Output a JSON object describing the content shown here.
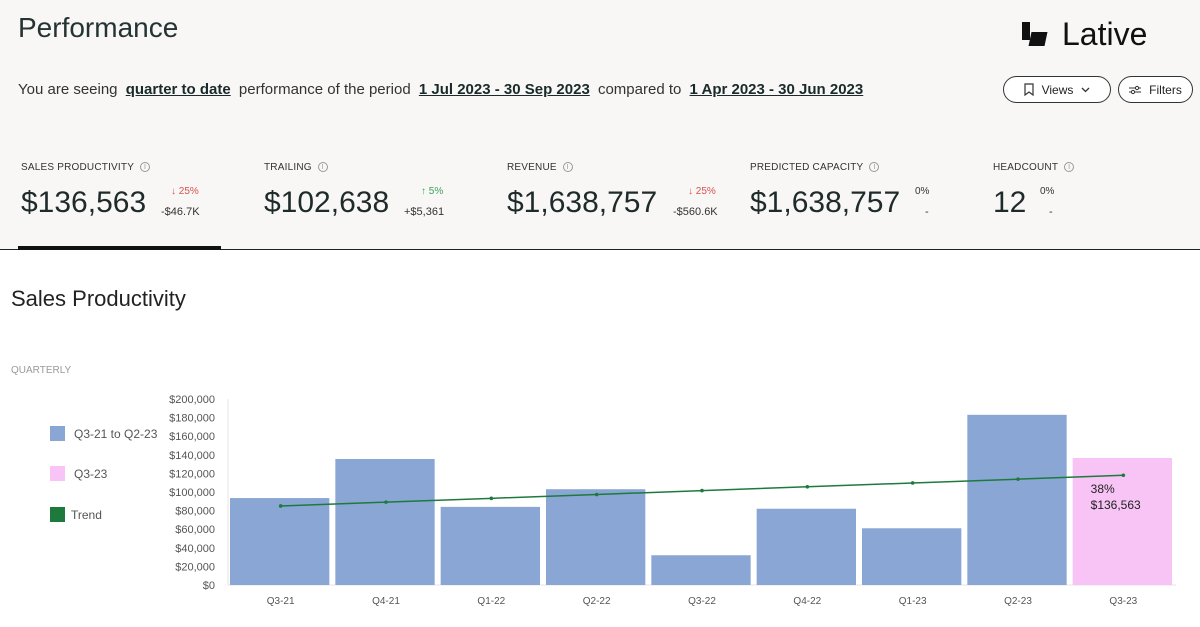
{
  "header": {
    "title": "Performance",
    "brand": "Lative",
    "subline": {
      "prefix": "You are seeing",
      "mode": "quarter to date",
      "middle": "performance of the period",
      "period": "1 Jul 2023 - 30 Sep 2023",
      "compared": "compared to",
      "compare_period": "1 Apr 2023 - 30 Jun 2023"
    },
    "views_label": "Views",
    "filters_label": "Filters"
  },
  "kpis": [
    {
      "label": "Sales Productivity",
      "value": "$136,563",
      "change": "25%",
      "direction": "down",
      "delta": "-$46.7K"
    },
    {
      "label": "Trailing",
      "value": "$102,638",
      "change": "5%",
      "direction": "up",
      "delta": "+$5,361"
    },
    {
      "label": "Revenue",
      "value": "$1,638,757",
      "change": "25%",
      "direction": "down",
      "delta": "-$560.6K"
    },
    {
      "label": "Predicted Capacity",
      "value": "$1,638,757",
      "change": "0%",
      "direction": "none",
      "delta": "-"
    },
    {
      "label": "Headcount",
      "value": "12",
      "change": "0%",
      "direction": "none",
      "delta": "-"
    }
  ],
  "section": {
    "title": "Sales Productivity",
    "period_label": "QUARTERLY"
  },
  "chart_data": {
    "type": "bar",
    "categories": [
      "Q3-21",
      "Q4-21",
      "Q1-22",
      "Q2-22",
      "Q3-22",
      "Q4-22",
      "Q1-23",
      "Q2-23",
      "Q3-23"
    ],
    "series": [
      {
        "name": "Q3-21 to Q2-23",
        "color": "#8aa6d4",
        "values": [
          93500,
          135500,
          84000,
          103000,
          32000,
          82000,
          61000,
          183000,
          null
        ]
      },
      {
        "name": "Q3-23",
        "color": "#f7c4f5",
        "values": [
          null,
          null,
          null,
          null,
          null,
          null,
          null,
          null,
          136563
        ]
      },
      {
        "name": "Trend",
        "color": "#1e7a3c",
        "type": "line",
        "values": [
          85000,
          89100,
          93200,
          97300,
          101500,
          105600,
          109700,
          113800,
          118000
        ]
      }
    ],
    "annotation": {
      "category": "Q3-23",
      "lines": [
        "38%",
        "$136,563"
      ]
    },
    "yticks": [
      "$0",
      "$20,000",
      "$40,000",
      "$60,000",
      "$80,000",
      "$100,000",
      "$120,000",
      "$140,000",
      "$160,000",
      "$180,000",
      "$200,000"
    ],
    "ylim": [
      0,
      200000
    ],
    "legend": "left"
  }
}
